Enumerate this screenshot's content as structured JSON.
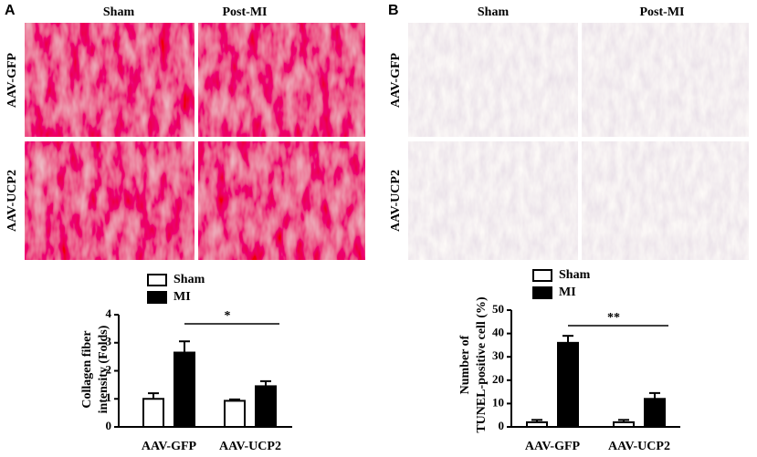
{
  "panels": [
    {
      "label": "A",
      "columns": [
        "Sham",
        "Post-MI"
      ],
      "rows": [
        "AAV-GFP",
        "AAV-UCP2"
      ]
    },
    {
      "label": "B",
      "columns": [
        "Sham",
        "Post-MI"
      ],
      "rows": [
        "AAV-GFP",
        "AAV-UCP2"
      ]
    }
  ],
  "chart_data": [
    {
      "type": "bar",
      "ylabel": [
        "Collagen fiber",
        "intensity (Folds)"
      ],
      "categories": [
        "AAV-GFP",
        "AAV-UCP2"
      ],
      "series": [
        {
          "name": "Sham",
          "color": "#ffffff",
          "values": [
            1.0,
            0.93
          ],
          "errors": [
            0.2,
            0.05
          ]
        },
        {
          "name": "MI",
          "color": "#000000",
          "values": [
            2.65,
            1.45
          ],
          "errors": [
            0.4,
            0.18
          ]
        }
      ],
      "ylim": [
        0,
        4
      ],
      "yticks": [
        0,
        1,
        2,
        3,
        4
      ],
      "annotation": "*"
    },
    {
      "type": "bar",
      "ylabel": [
        "Number of",
        "TUNEL-positive cell (%)"
      ],
      "categories": [
        "AAV-GFP",
        "AAV-UCP2"
      ],
      "series": [
        {
          "name": "Sham",
          "color": "#ffffff",
          "values": [
            2,
            2
          ],
          "errors": [
            1,
            1
          ]
        },
        {
          "name": "MI",
          "color": "#000000",
          "values": [
            36,
            12
          ],
          "errors": [
            3,
            2.5
          ]
        }
      ],
      "ylim": [
        0,
        50
      ],
      "yticks": [
        0,
        10,
        20,
        30,
        40,
        50
      ],
      "annotation": "**"
    }
  ]
}
